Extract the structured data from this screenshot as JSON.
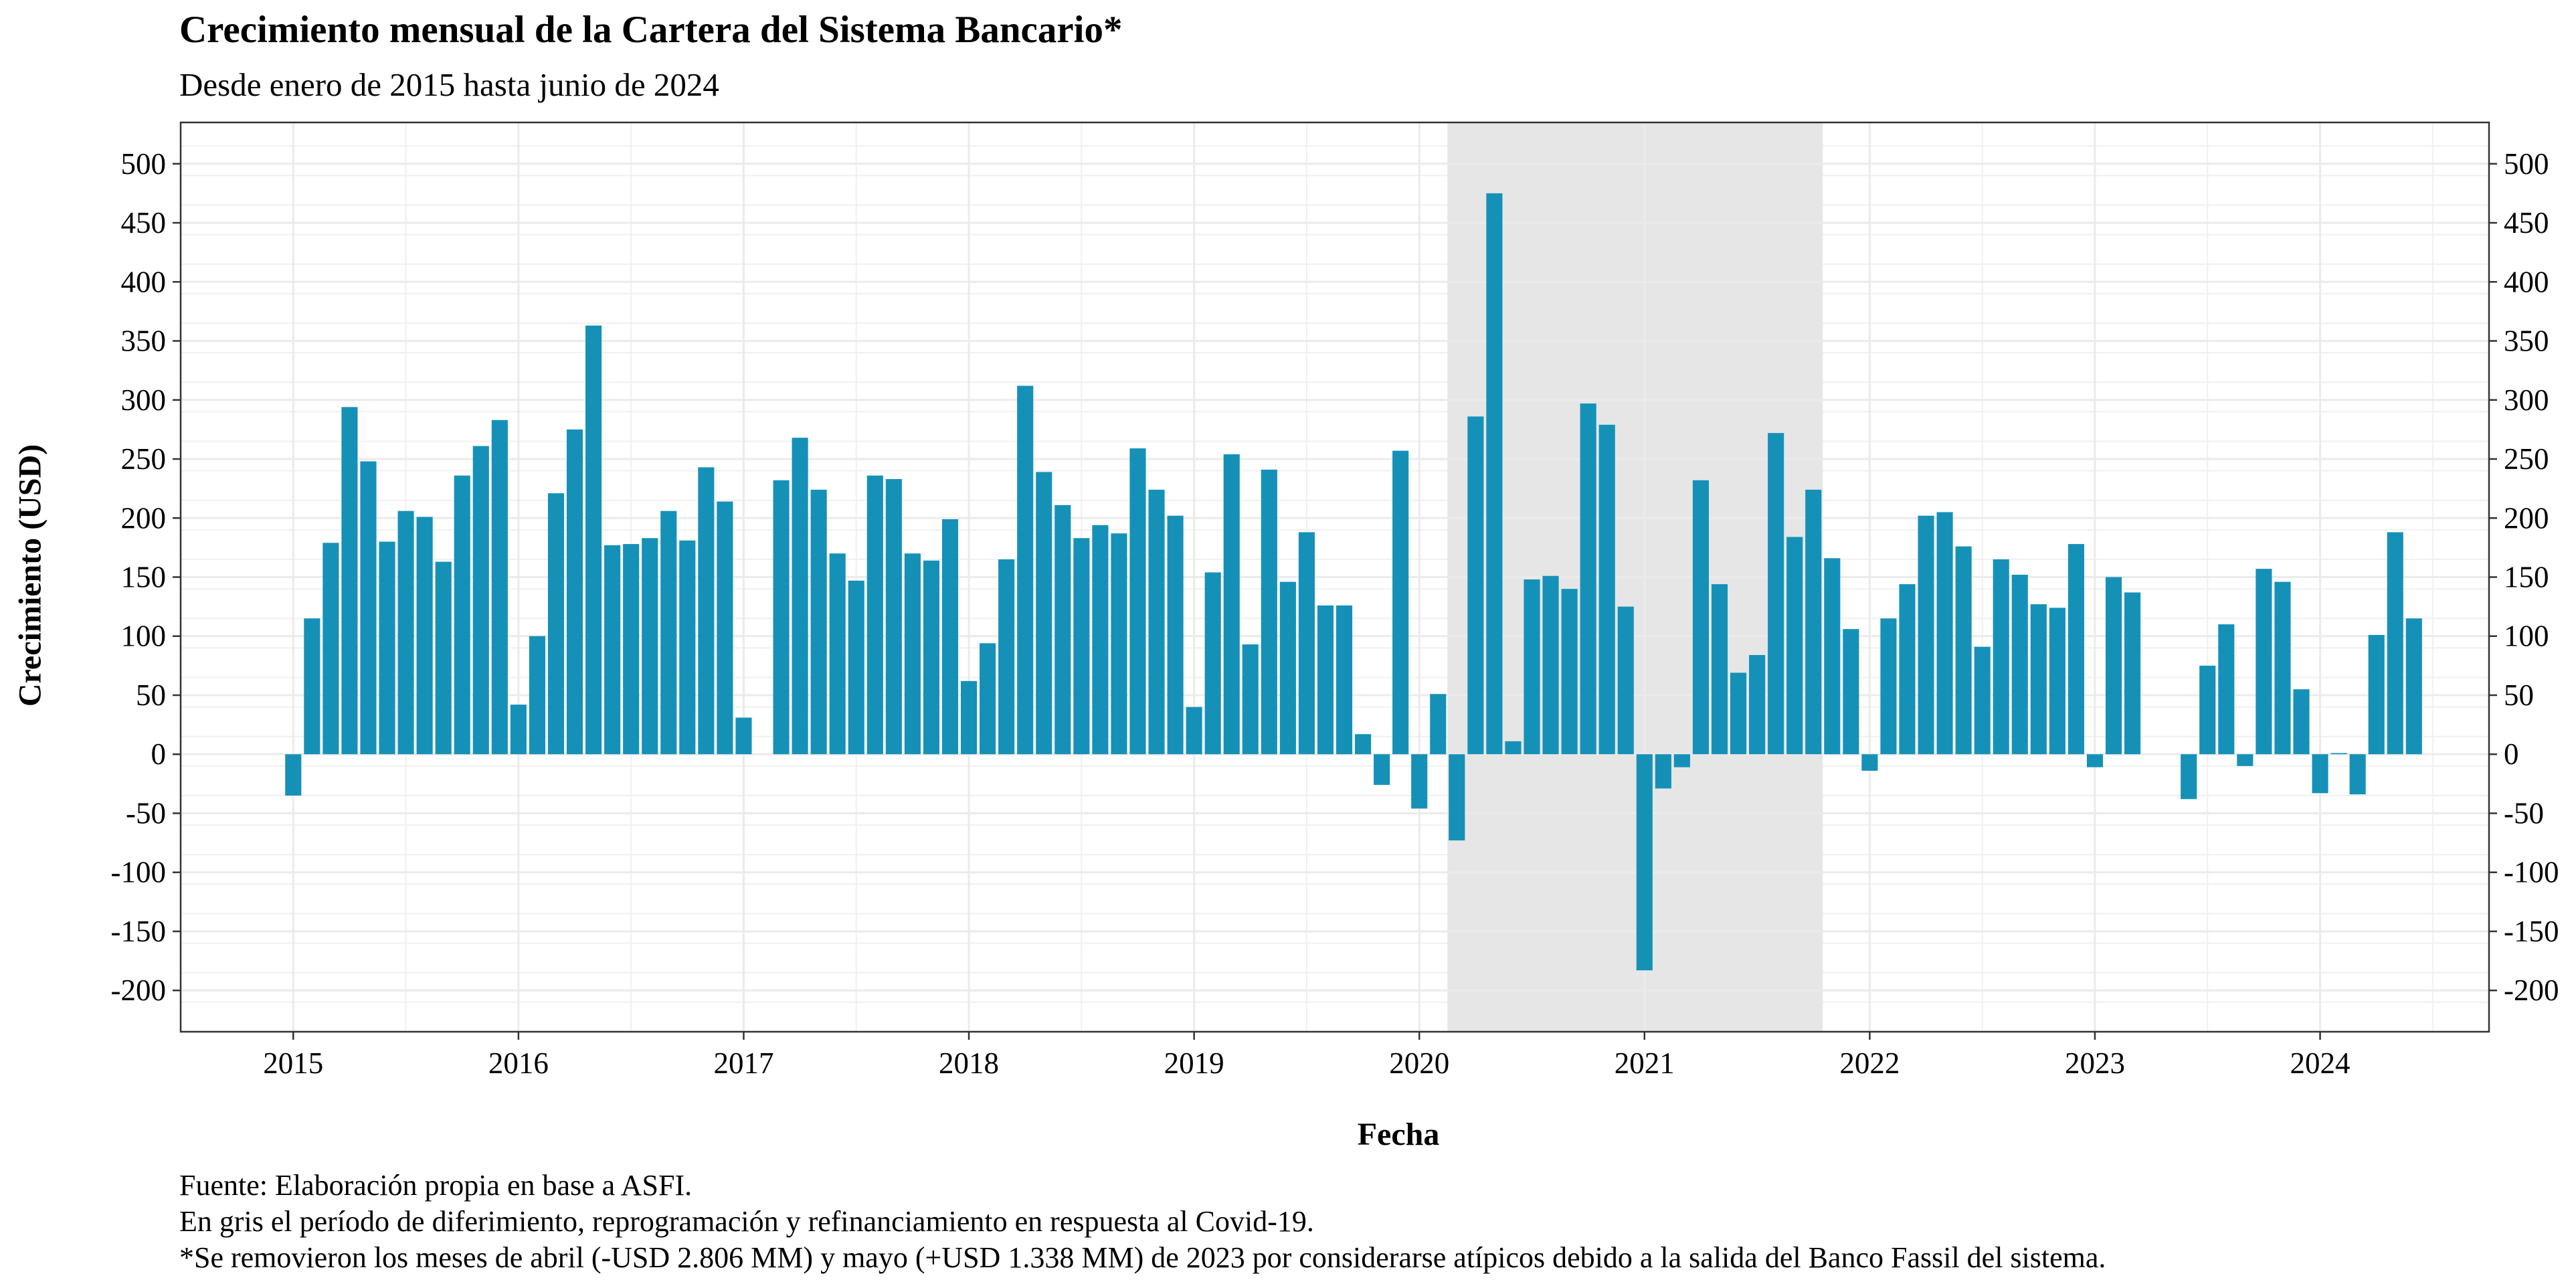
{
  "chart_data": {
    "type": "bar",
    "title": "Crecimiento mensual de la Cartera del Sistema Bancario*",
    "subtitle": "Desde enero de 2015 hasta junio de 2024",
    "xlabel": "Fecha",
    "ylabel": "Crecimiento (USD)",
    "ylim": [
      -235,
      535
    ],
    "yticks": [
      -200,
      -150,
      -100,
      -50,
      0,
      50,
      100,
      150,
      200,
      250,
      300,
      350,
      400,
      450,
      500
    ],
    "ytick_labels": [
      "-200",
      "-150",
      "-100",
      "-50",
      "0",
      "50",
      "100",
      "150",
      "200",
      "250",
      "300",
      "350",
      "400",
      "450",
      "500"
    ],
    "xticks": [
      "2015-01",
      "2016-01",
      "2017-01",
      "2018-01",
      "2019-01",
      "2020-01",
      "2021-01",
      "2022-01",
      "2023-01",
      "2024-01"
    ],
    "xtick_labels": [
      "2015",
      "2016",
      "2017",
      "2018",
      "2019",
      "2020",
      "2021",
      "2022",
      "2023",
      "2024"
    ],
    "grid": true,
    "bar_color": "#1591b8",
    "shaded_period": {
      "start": "2020-03",
      "end": "2021-10",
      "color": "#e6e6e6"
    },
    "dates": [
      "2015-01",
      "2015-02",
      "2015-03",
      "2015-04",
      "2015-05",
      "2015-06",
      "2015-07",
      "2015-08",
      "2015-09",
      "2015-10",
      "2015-11",
      "2015-12",
      "2016-01",
      "2016-02",
      "2016-03",
      "2016-04",
      "2016-05",
      "2016-06",
      "2016-07",
      "2016-08",
      "2016-09",
      "2016-10",
      "2016-11",
      "2016-12",
      "2017-01",
      "2017-02",
      "2017-03",
      "2017-04",
      "2017-05",
      "2017-06",
      "2017-07",
      "2017-08",
      "2017-09",
      "2017-10",
      "2017-11",
      "2017-12",
      "2018-01",
      "2018-02",
      "2018-03",
      "2018-04",
      "2018-05",
      "2018-06",
      "2018-07",
      "2018-08",
      "2018-09",
      "2018-10",
      "2018-11",
      "2018-12",
      "2019-01",
      "2019-02",
      "2019-03",
      "2019-04",
      "2019-05",
      "2019-06",
      "2019-07",
      "2019-08",
      "2019-09",
      "2019-10",
      "2019-11",
      "2019-12",
      "2020-01",
      "2020-02",
      "2020-03",
      "2020-04",
      "2020-05",
      "2020-06",
      "2020-07",
      "2020-08",
      "2020-09",
      "2020-10",
      "2020-11",
      "2020-12",
      "2021-01",
      "2021-02",
      "2021-03",
      "2021-04",
      "2021-05",
      "2021-06",
      "2021-07",
      "2021-08",
      "2021-09",
      "2021-10",
      "2021-11",
      "2021-12",
      "2022-01",
      "2022-02",
      "2022-03",
      "2022-04",
      "2022-05",
      "2022-06",
      "2022-07",
      "2022-08",
      "2022-09",
      "2022-10",
      "2022-11",
      "2022-12",
      "2023-01",
      "2023-02",
      "2023-03",
      "2023-04",
      "2023-05",
      "2023-06",
      "2023-07",
      "2023-08",
      "2023-09",
      "2023-10",
      "2023-11",
      "2023-12",
      "2024-01",
      "2024-02",
      "2024-03",
      "2024-04",
      "2024-05",
      "2024-06"
    ],
    "values": [
      -35,
      115,
      179,
      294,
      248,
      180,
      206,
      201,
      163,
      236,
      261,
      283,
      42,
      100,
      221,
      275,
      363,
      177,
      178,
      183,
      206,
      181,
      243,
      214,
      31,
      null,
      232,
      268,
      224,
      170,
      147,
      236,
      233,
      170,
      164,
      199,
      62,
      94,
      165,
      312,
      239,
      211,
      183,
      194,
      187,
      259,
      224,
      202,
      40,
      154,
      254,
      93,
      241,
      146,
      188,
      126,
      126,
      17,
      -26,
      257,
      -46,
      51,
      -73,
      286,
      475,
      11,
      148,
      151,
      140,
      297,
      279,
      125,
      -183,
      -29,
      -11,
      232,
      144,
      69,
      84,
      272,
      184,
      224,
      166,
      106,
      -14,
      115,
      144,
      202,
      205,
      176,
      91,
      165,
      152,
      127,
      124,
      178,
      -11,
      150,
      137,
      null,
      null,
      -38,
      75,
      110,
      -10,
      157,
      146,
      55,
      -33,
      1,
      -34,
      101,
      188,
      115
    ]
  },
  "notes": {
    "source": "Fuente: Elaboración propia en base a ASFI.",
    "gray": "En gris el período de diferimiento, reprogramación y refinanciamiento en respuesta al Covid-19.",
    "footnote": "*Se removieron los meses de abril (-USD 2.806 MM) y mayo (+USD 1.338 MM) de 2023 por considerarse atípicos debido a la salida del Banco Fassil del sistema."
  }
}
